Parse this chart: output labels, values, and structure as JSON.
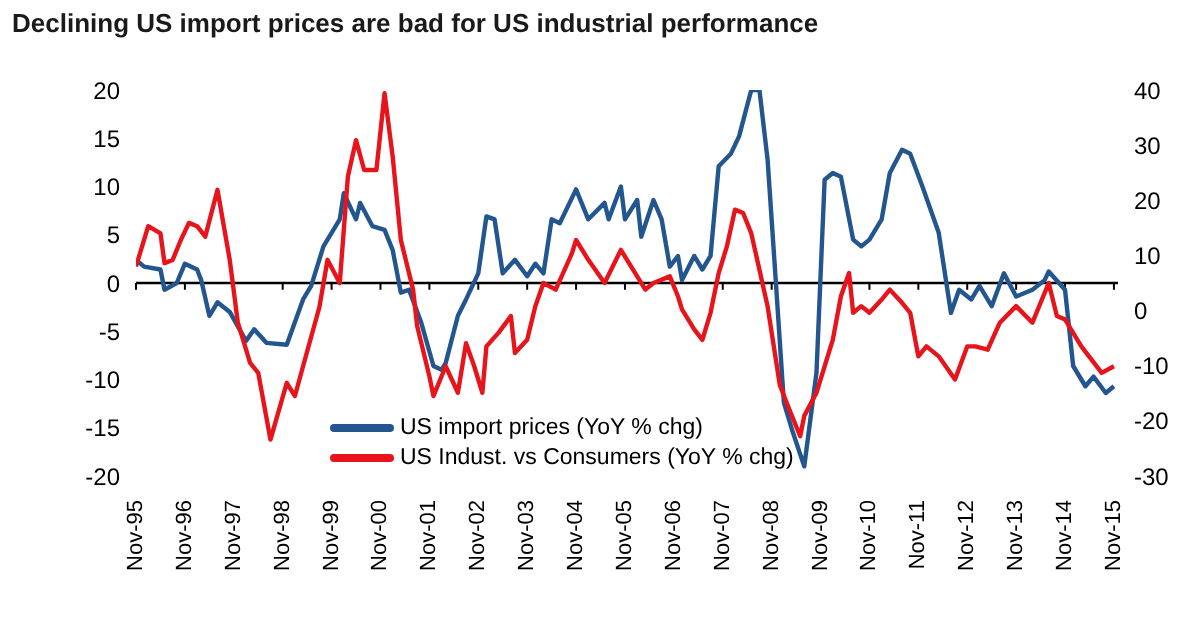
{
  "chart_data": {
    "type": "line",
    "title": "Declining US import prices are bad for US industrial performance",
    "xlim": [
      "1995-11",
      "2015-12"
    ],
    "xticks": [
      {
        "value": "1995-11",
        "label": "Nov-95"
      },
      {
        "value": "1996-11",
        "label": "Nov-96"
      },
      {
        "value": "1997-11",
        "label": "Nov-97"
      },
      {
        "value": "1998-11",
        "label": "Nov-98"
      },
      {
        "value": "1999-11",
        "label": "Nov-99"
      },
      {
        "value": "2000-11",
        "label": "Nov-00"
      },
      {
        "value": "2001-11",
        "label": "Nov-01"
      },
      {
        "value": "2002-11",
        "label": "Nov-02"
      },
      {
        "value": "2003-11",
        "label": "Nov-03"
      },
      {
        "value": "2004-11",
        "label": "Nov-04"
      },
      {
        "value": "2005-11",
        "label": "Nov-05"
      },
      {
        "value": "2006-11",
        "label": "Nov-06"
      },
      {
        "value": "2007-11",
        "label": "Nov-07"
      },
      {
        "value": "2008-11",
        "label": "Nov-08"
      },
      {
        "value": "2009-11",
        "label": "Nov-09"
      },
      {
        "value": "2010-11",
        "label": "Nov-10"
      },
      {
        "value": "2011-11",
        "label": "Nov-11"
      },
      {
        "value": "2012-11",
        "label": "Nov-12"
      },
      {
        "value": "2013-11",
        "label": "Nov-13"
      },
      {
        "value": "2014-11",
        "label": "Nov-14"
      },
      {
        "value": "2015-11",
        "label": "Nov-15"
      }
    ],
    "ylim": [
      -20,
      20
    ],
    "yticks": [
      -20,
      -15,
      -10,
      -5,
      0,
      5,
      10,
      15,
      20
    ],
    "y2lim": [
      -30,
      40
    ],
    "y2ticks": [
      -30,
      -20,
      -10,
      0,
      10,
      20,
      30,
      40
    ],
    "ref_lines": [
      {
        "axis": "y",
        "value": 0,
        "color": "#000000"
      }
    ],
    "grid": false,
    "legend": "bottom",
    "marker": "none",
    "line_style": "solid",
    "series": [
      {
        "name": "US import prices (YoY % chg)",
        "color": "#23558f",
        "x": [
          "1995-11",
          "1996-01",
          "1996-05",
          "1996-06",
          "1996-09",
          "1996-11",
          "1997-02",
          "1997-03",
          "1997-05",
          "1997-07",
          "1997-10",
          "1998-02",
          "1998-04",
          "1998-07",
          "1998-12",
          "1999-04",
          "1999-06",
          "1999-09",
          "2000-01",
          "2000-02",
          "2000-05",
          "2000-06",
          "2000-09",
          "2000-12",
          "2001-02",
          "2001-04",
          "2001-06",
          "2001-09",
          "2001-12",
          "2002-02",
          "2002-03",
          "2002-06",
          "2002-08",
          "2002-11",
          "2003-01",
          "2003-03",
          "2003-05",
          "2003-08",
          "2003-11",
          "2004-01",
          "2004-03",
          "2004-05",
          "2004-07",
          "2004-11",
          "2005-02",
          "2005-06",
          "2005-07",
          "2005-10",
          "2005-11",
          "2006-02",
          "2006-03",
          "2006-06",
          "2006-08",
          "2006-10",
          "2006-12",
          "2007-01",
          "2007-04",
          "2007-06",
          "2007-08",
          "2007-10",
          "2008-01",
          "2008-03",
          "2008-06",
          "2008-08",
          "2008-10",
          "2008-12",
          "2009-02",
          "2009-04",
          "2009-07",
          "2009-10",
          "2009-12",
          "2010-02",
          "2010-04",
          "2010-07",
          "2010-09",
          "2010-11",
          "2011-02",
          "2011-04",
          "2011-07",
          "2011-09",
          "2011-12",
          "2012-04",
          "2012-07",
          "2012-09",
          "2012-12",
          "2013-02",
          "2013-05",
          "2013-08",
          "2013-11",
          "2014-03",
          "2014-06",
          "2014-07",
          "2014-11",
          "2015-01",
          "2015-04",
          "2015-06",
          "2015-09",
          "2015-11"
        ],
        "values": [
          2.4,
          1.7,
          1.4,
          -0.7,
          0,
          2,
          1.4,
          0.3,
          -3.4,
          -2,
          -3,
          -6,
          -4.8,
          -6.2,
          -6.4,
          -1.7,
          -0.3,
          3.8,
          6.6,
          9.3,
          6.6,
          8.3,
          5.9,
          5.5,
          3.4,
          -1,
          -0.7,
          -4.1,
          -8.6,
          -9,
          -8.3,
          -3.4,
          -1.7,
          1,
          6.9,
          6.6,
          1,
          2.4,
          0.7,
          2,
          1,
          6.6,
          6.2,
          9.7,
          6.6,
          8.3,
          6.6,
          10,
          6.6,
          8.6,
          4.8,
          8.6,
          6.6,
          1.7,
          2.8,
          0.3,
          2.8,
          1.4,
          2.8,
          12.1,
          13.4,
          15.2,
          20,
          20,
          12.8,
          0.3,
          -12.4,
          -15.2,
          -19,
          -9.3,
          10.7,
          11.4,
          11,
          4.5,
          3.8,
          4.5,
          6.6,
          11.4,
          13.8,
          13.4,
          10,
          5.2,
          -3.1,
          -0.7,
          -1.7,
          -0.3,
          -2.4,
          1,
          -1.4,
          -0.7,
          0.3,
          1.2,
          -0.7,
          -8.6,
          -10.7,
          -9.7,
          -11.4,
          -10.7
        ]
      },
      {
        "name": "US Indust. vs Consumers (YoY % chg)",
        "color": "#e8141c",
        "axis": "y2",
        "x": [
          "1995-11",
          "1996-02",
          "1996-05",
          "1996-06",
          "1996-08",
          "1996-10",
          "1996-12",
          "1997-02",
          "1997-04",
          "1997-07",
          "1997-10",
          "1997-12",
          "1998-03",
          "1998-05",
          "1998-08",
          "1998-12",
          "1999-02",
          "1999-04",
          "1999-08",
          "1999-10",
          "2000-01",
          "2000-03",
          "2000-05",
          "2000-07",
          "2000-10",
          "2000-12",
          "2001-02",
          "2001-04",
          "2001-07",
          "2001-08",
          "2001-11",
          "2001-12",
          "2002-03",
          "2002-06",
          "2002-08",
          "2002-10",
          "2002-12",
          "2003-01",
          "2003-04",
          "2003-07",
          "2003-08",
          "2003-11",
          "2004-01",
          "2004-03",
          "2004-06",
          "2004-10",
          "2004-11",
          "2005-02",
          "2005-06",
          "2005-10",
          "2006-02",
          "2006-04",
          "2006-06",
          "2006-10",
          "2006-12",
          "2007-01",
          "2007-04",
          "2007-06",
          "2007-08",
          "2007-10",
          "2007-12",
          "2008-02",
          "2008-04",
          "2008-06",
          "2008-10",
          "2009-01",
          "2009-03",
          "2009-06",
          "2009-07",
          "2009-10",
          "2010-02",
          "2010-04",
          "2010-06",
          "2010-07",
          "2010-09",
          "2010-11",
          "2011-02",
          "2011-04",
          "2011-07",
          "2011-09",
          "2011-11",
          "2012-01",
          "2012-04",
          "2012-08",
          "2012-11",
          "2013-01",
          "2013-04",
          "2013-07",
          "2013-11",
          "2014-03",
          "2014-07",
          "2014-09",
          "2014-11",
          "2015-03",
          "2015-08",
          "2015-11"
        ],
        "values": [
          8,
          15.3,
          14,
          8.6,
          9.2,
          12.8,
          15.9,
          15.3,
          13.4,
          21.9,
          9.2,
          -2.2,
          -9.5,
          -11.3,
          -23.4,
          -13.1,
          -15.5,
          -10.1,
          0.6,
          9.2,
          5,
          24.3,
          30.9,
          25.5,
          25.5,
          39.4,
          27.9,
          12.8,
          3.8,
          -2.8,
          -11.9,
          -15.5,
          -10.1,
          -14.9,
          -5.9,
          -10.1,
          -14.9,
          -6.5,
          -4,
          -1,
          -7.7,
          -5.3,
          0.8,
          5,
          3.8,
          10.4,
          12.8,
          9.2,
          5,
          11,
          6.2,
          3.8,
          5,
          6.2,
          2.6,
          0.2,
          -3.4,
          -5.3,
          -0.4,
          6.8,
          11.6,
          18.3,
          17.7,
          14,
          0.8,
          -13.5,
          -17.3,
          -22.8,
          -19.1,
          -14.9,
          -5.3,
          2.6,
          6.8,
          -0.4,
          0.8,
          -0.4,
          2,
          3.8,
          1.4,
          -0.4,
          -8.3,
          -6.5,
          -8.3,
          -12.5,
          -6.5,
          -6.5,
          -7.1,
          -2.2,
          0.8,
          -2.2,
          5,
          -1,
          -1.6,
          -6.5,
          -11.3,
          -10.1
        ]
      }
    ]
  }
}
